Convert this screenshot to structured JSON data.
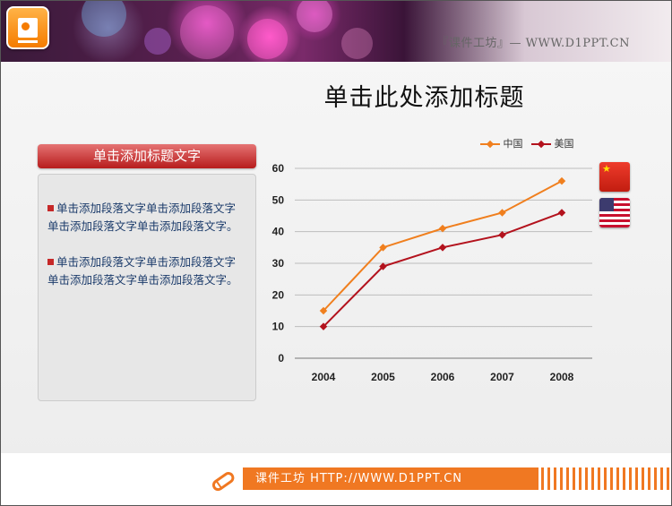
{
  "header": {
    "watermark": "『课件工坊』— WWW.D1PPT.CN"
  },
  "slide": {
    "title": "单击此处添加标题"
  },
  "panel": {
    "heading": "单击添加标题文字",
    "paragraphs": [
      "单击添加段落文字单击添加段落文字单击添加段落文字单击添加段落文字。",
      "单击添加段落文字单击添加段落文字单击添加段落文字单击添加段落文字。"
    ]
  },
  "chart_data": {
    "type": "line",
    "categories": [
      "2004",
      "2005",
      "2006",
      "2007",
      "2008"
    ],
    "series": [
      {
        "name": "中国",
        "values": [
          15,
          35,
          41,
          46,
          56
        ],
        "color": "#f07f1e"
      },
      {
        "name": "美国",
        "values": [
          10,
          29,
          35,
          39,
          46
        ],
        "color": "#b3121d"
      }
    ],
    "yticks": [
      "0",
      "10",
      "20",
      "30",
      "40",
      "50",
      "60"
    ],
    "ylim": [
      0,
      60
    ],
    "grid": true,
    "legend_position": "top-right"
  },
  "flags": [
    "china-flag-icon",
    "usa-flag-icon"
  ],
  "footer": {
    "text": "课件工坊  HTTP://WWW.D1PPT.CN",
    "accent": "#f07822"
  }
}
